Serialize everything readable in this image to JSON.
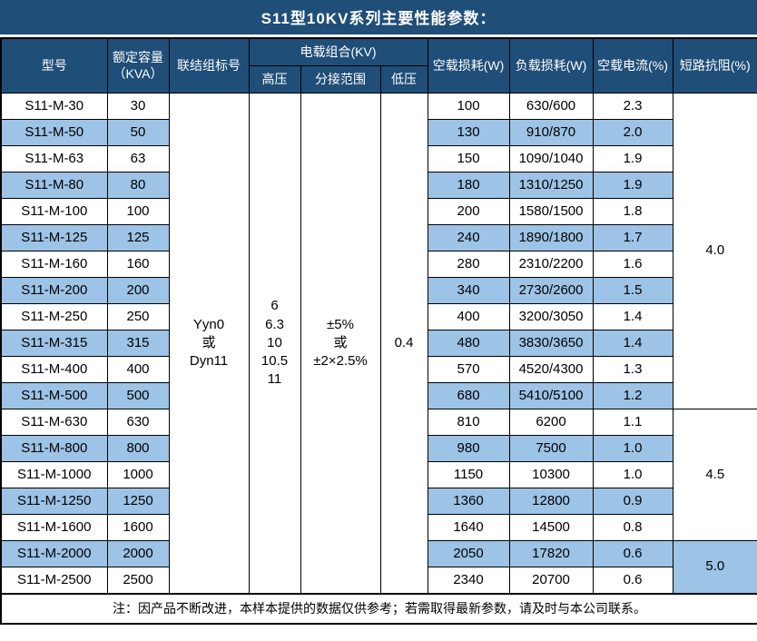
{
  "title": "S11型10KV系列主要性能参数：",
  "colors": {
    "header_bg": "#1F4E79",
    "stripe_bg": "#9DC3E6",
    "border": "#000000",
    "header_text": "#ffffff",
    "body_text": "#000000"
  },
  "header": {
    "model": "型号",
    "capacity": "额定容量\n（KVA）",
    "vector_group": "联结组标号",
    "voltage_combo": "电载组合(KV)",
    "hv": "高压",
    "tap_range": "分接范围",
    "lv": "低压",
    "no_load_loss": "空载损耗(W)",
    "load_loss": "负载损耗(W)",
    "no_load_current": "空载电流(%)",
    "impedance": "短路抗阻(%)"
  },
  "merged": {
    "vector_group": "Yyn0\n或\nDyn11",
    "hv": "6\n6.3\n10\n10.5\n11",
    "tap_range": "±5%\n或\n±2×2.5%",
    "lv": "0.4"
  },
  "rows": [
    {
      "model": "S11-M-30",
      "capacity": "30",
      "no_load_loss": "100",
      "load_loss": "630/600",
      "no_load_current": "2.3"
    },
    {
      "model": "S11-M-50",
      "capacity": "50",
      "no_load_loss": "130",
      "load_loss": "910/870",
      "no_load_current": "2.0"
    },
    {
      "model": "S11-M-63",
      "capacity": "63",
      "no_load_loss": "150",
      "load_loss": "1090/1040",
      "no_load_current": "1.9"
    },
    {
      "model": "S11-M-80",
      "capacity": "80",
      "no_load_loss": "180",
      "load_loss": "1310/1250",
      "no_load_current": "1.9"
    },
    {
      "model": "S11-M-100",
      "capacity": "100",
      "no_load_loss": "200",
      "load_loss": "1580/1500",
      "no_load_current": "1.8"
    },
    {
      "model": "S11-M-125",
      "capacity": "125",
      "no_load_loss": "240",
      "load_loss": "1890/1800",
      "no_load_current": "1.7"
    },
    {
      "model": "S11-M-160",
      "capacity": "160",
      "no_load_loss": "280",
      "load_loss": "2310/2200",
      "no_load_current": "1.6"
    },
    {
      "model": "S11-M-200",
      "capacity": "200",
      "no_load_loss": "340",
      "load_loss": "2730/2600",
      "no_load_current": "1.5"
    },
    {
      "model": "S11-M-250",
      "capacity": "250",
      "no_load_loss": "400",
      "load_loss": "3200/3050",
      "no_load_current": "1.4"
    },
    {
      "model": "S11-M-315",
      "capacity": "315",
      "no_load_loss": "480",
      "load_loss": "3830/3650",
      "no_load_current": "1.4"
    },
    {
      "model": "S11-M-400",
      "capacity": "400",
      "no_load_loss": "570",
      "load_loss": "4520/4300",
      "no_load_current": "1.3"
    },
    {
      "model": "S11-M-500",
      "capacity": "500",
      "no_load_loss": "680",
      "load_loss": "5410/5100",
      "no_load_current": "1.2"
    },
    {
      "model": "S11-M-630",
      "capacity": "630",
      "no_load_loss": "810",
      "load_loss": "6200",
      "no_load_current": "1.1"
    },
    {
      "model": "S11-M-800",
      "capacity": "800",
      "no_load_loss": "980",
      "load_loss": "7500",
      "no_load_current": "1.0"
    },
    {
      "model": "S11-M-1000",
      "capacity": "1000",
      "no_load_loss": "1150",
      "load_loss": "10300",
      "no_load_current": "1.0"
    },
    {
      "model": "S11-M-1250",
      "capacity": "1250",
      "no_load_loss": "1360",
      "load_loss": "12800",
      "no_load_current": "0.9"
    },
    {
      "model": "S11-M-1600",
      "capacity": "1600",
      "no_load_loss": "1640",
      "load_loss": "14500",
      "no_load_current": "0.8"
    },
    {
      "model": "S11-M-2000",
      "capacity": "2000",
      "no_load_loss": "2050",
      "load_loss": "17820",
      "no_load_current": "0.6"
    },
    {
      "model": "S11-M-2500",
      "capacity": "2500",
      "no_load_loss": "2340",
      "load_loss": "20700",
      "no_load_current": "0.6"
    }
  ],
  "impedance_groups": [
    {
      "value": "4.0",
      "span": 12
    },
    {
      "value": "4.5",
      "span": 5
    },
    {
      "value": "5.0",
      "span": 2
    }
  ],
  "note": "注：因产品不断改进，本样本提供的数据仅供参考；若需取得最新参数，请及时与本公司联系。"
}
